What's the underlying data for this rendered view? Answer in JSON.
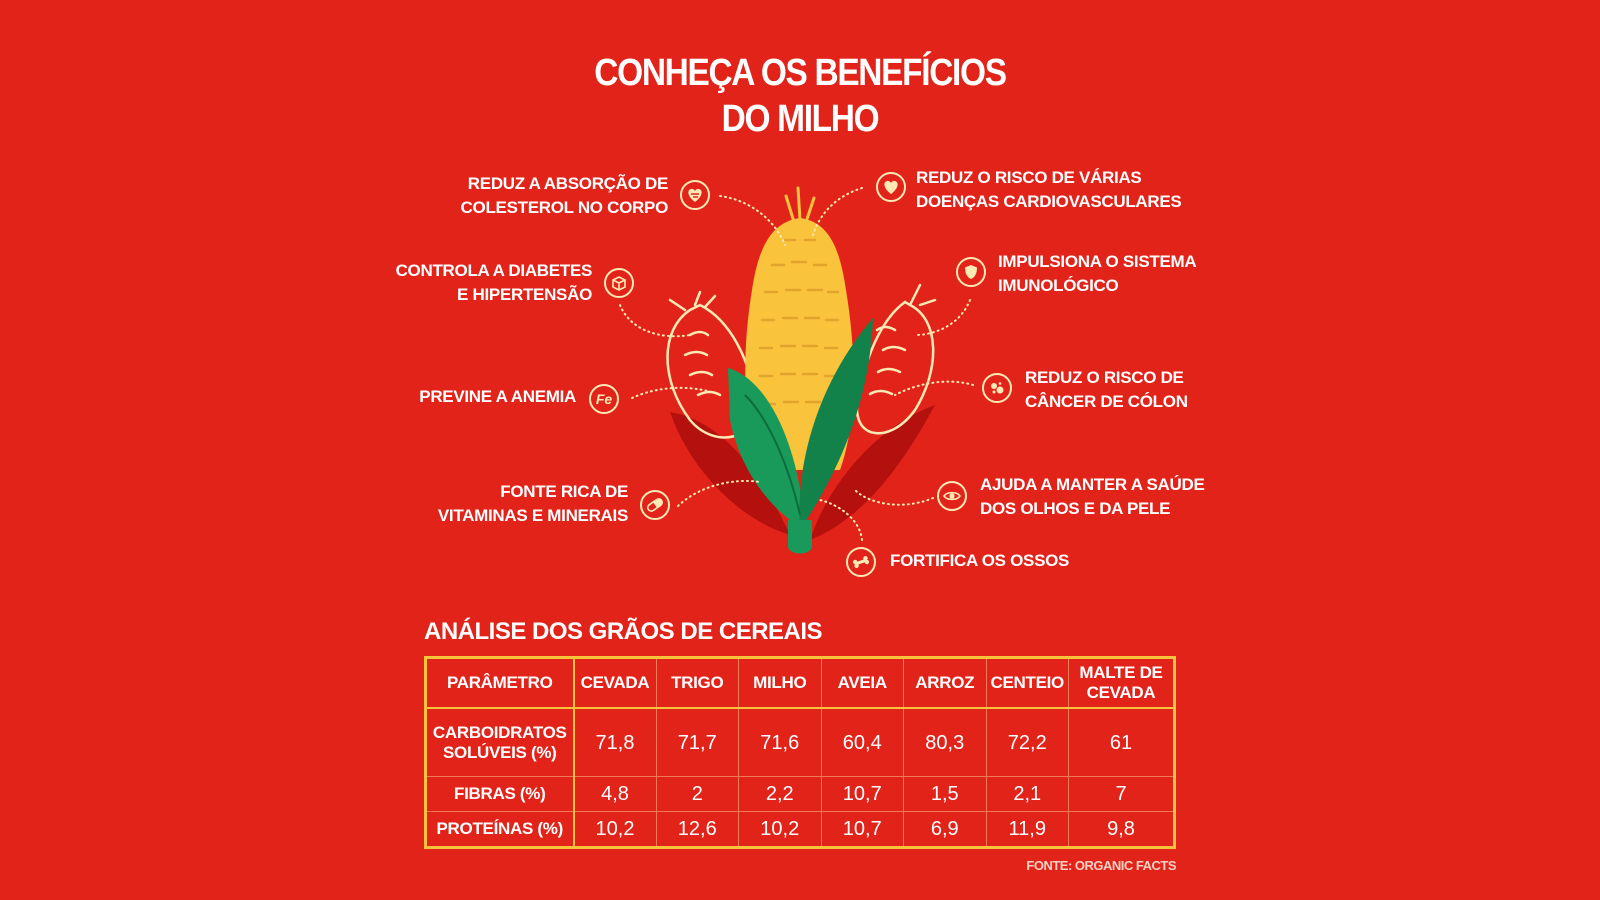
{
  "title": {
    "line1": "CONHEÇA OS BENEFÍCIOS",
    "line2": "DO MILHO"
  },
  "benefits": {
    "colesterol": {
      "line1": "REDUZ A ABSORÇÃO DE",
      "line2": "COLESTEROL NO CORPO",
      "icon": "cholesterol-heart-icon"
    },
    "diabetes": {
      "line1": "CONTROLA A DIABETES",
      "line2": "E HIPERTENSÃO",
      "icon": "sugar-cube-icon"
    },
    "anemia": {
      "line1": "PREVINE A ANEMIA",
      "icon_text": "Fe",
      "icon": "iron-fe-icon"
    },
    "vitaminas": {
      "line1": "FONTE RICA DE",
      "line2": "VITAMINAS E MINERAIS",
      "icon": "pill-capsule-icon"
    },
    "cardio": {
      "line1": "REDUZ O RISCO DE VÁRIAS",
      "line2": "DOENÇAS CARDIOVASCULARES",
      "icon": "heart-icon"
    },
    "imune": {
      "line1": "IMPULSIONA O SISTEMA",
      "line2": "IMUNOLÓGICO",
      "icon": "shield-icon"
    },
    "colon": {
      "line1": "REDUZ O RISCO DE",
      "line2": "CÂNCER DE CÓLON",
      "icon": "cells-icon"
    },
    "olhos": {
      "line1": "AJUDA A MANTER A SAÚDE",
      "line2": "DOS OLHOS E DA PELE",
      "icon": "eye-icon"
    },
    "ossos": {
      "line1": "FORTIFICA OS OSSOS",
      "icon": "bone-icon"
    }
  },
  "table": {
    "title": "ANÁLISE DOS GRÃOS DE CEREAIS",
    "headers": [
      "PARÂMETRO",
      "CEVADA",
      "TRIGO",
      "MILHO",
      "AVEIA",
      "ARROZ",
      "CENTEIO",
      "MALTE DE CEVADA"
    ],
    "rows": [
      {
        "param": "CARBOIDRATOS SOLÚVEIS (%)",
        "values": [
          "71,8",
          "71,7",
          "71,6",
          "60,4",
          "80,3",
          "72,2",
          "61"
        ]
      },
      {
        "param": "FIBRAS (%)",
        "values": [
          "4,8",
          "2",
          "2,2",
          "10,7",
          "1,5",
          "2,1",
          "7"
        ]
      },
      {
        "param": "PROTEÍNAS (%)",
        "values": [
          "10,2",
          "12,6",
          "10,2",
          "10,7",
          "6,9",
          "11,9",
          "9,8"
        ]
      }
    ]
  },
  "source": "FONTE: ORGANIC FACTS",
  "colors": {
    "background": "#e2231a",
    "corn_yellow": "#f9c33c",
    "husk_green": "#1a9a5a",
    "shadow_red": "#b3100e",
    "accent": "#f6c33a",
    "line": "#fde9b4"
  }
}
